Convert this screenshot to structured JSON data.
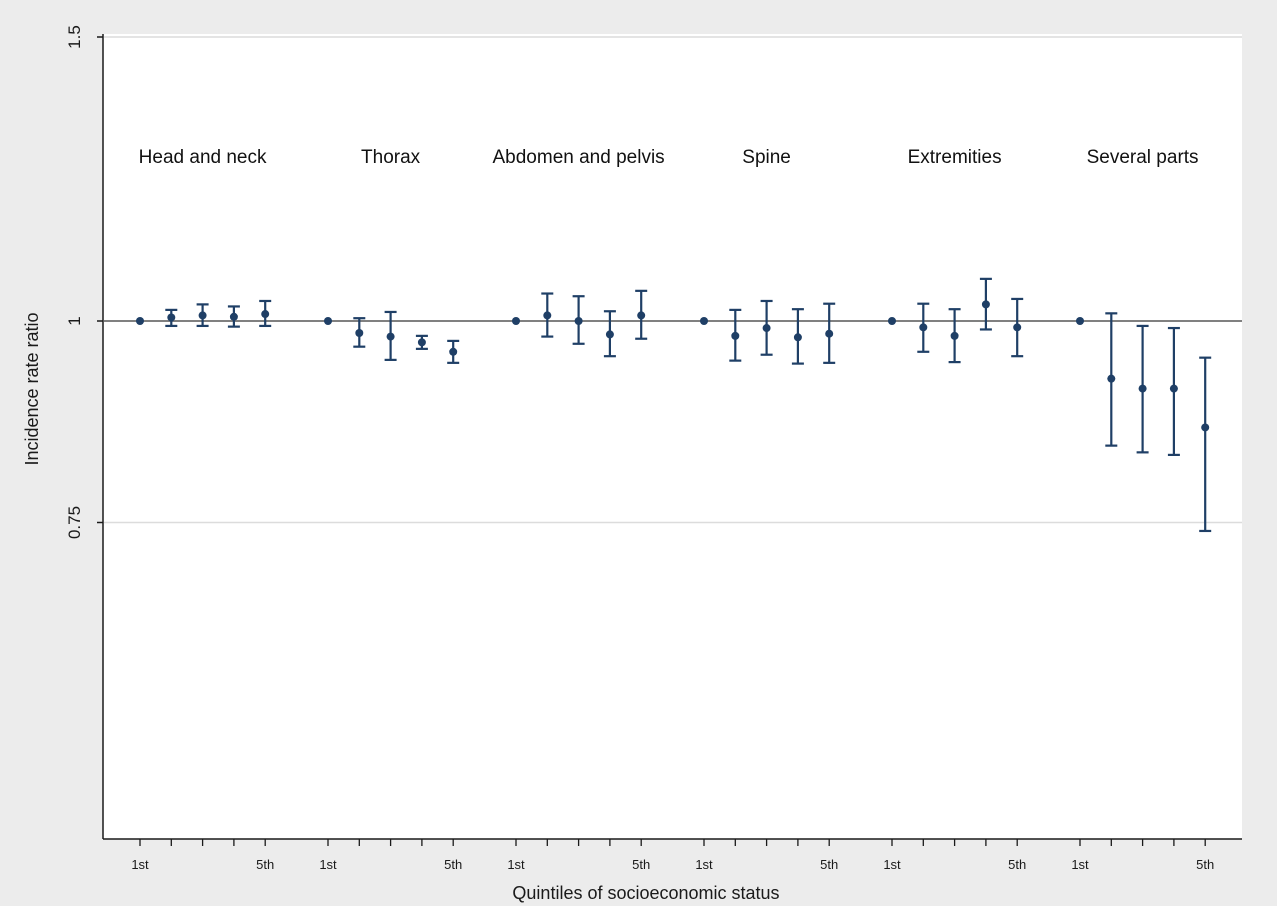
{
  "chart_data": {
    "type": "scatter",
    "subtype": "point-estimates-with-confidence-intervals",
    "xlabel": "Quintiles of socioeconomic status",
    "ylabel": "Incidence rate ratio",
    "ylim": [
      0.735,
      1.5
    ],
    "yscale": "log",
    "yticks": [
      0.75,
      1,
      1.5
    ],
    "ytick_labels": [
      "0.75",
      "1",
      "1.5"
    ],
    "reference_line": 1,
    "grid": true,
    "marker_color": "#1f3f66",
    "reference_line_color": "#808080",
    "background_color": "#ececec",
    "plot_background_color": "#ffffff",
    "groups": [
      {
        "label": "Head and neck",
        "tick_labels": [
          "1st",
          "5th"
        ],
        "points": [
          {
            "quintile": "1st",
            "irr": 1.0,
            "lower": null,
            "upper": null
          },
          {
            "quintile": "2nd",
            "irr": 1.005,
            "lower": 0.993,
            "upper": 1.016
          },
          {
            "quintile": "3rd",
            "irr": 1.008,
            "lower": 0.993,
            "upper": 1.024
          },
          {
            "quintile": "4th",
            "irr": 1.006,
            "lower": 0.992,
            "upper": 1.021
          },
          {
            "quintile": "5th",
            "irr": 1.01,
            "lower": 0.993,
            "upper": 1.029
          }
        ]
      },
      {
        "label": "Thorax",
        "tick_labels": [
          "1st",
          "5th"
        ],
        "points": [
          {
            "quintile": "1st",
            "irr": 1.0,
            "lower": null,
            "upper": null
          },
          {
            "quintile": "2nd",
            "irr": 0.983,
            "lower": 0.964,
            "upper": 1.004
          },
          {
            "quintile": "3rd",
            "irr": 0.978,
            "lower": 0.946,
            "upper": 1.013
          },
          {
            "quintile": "4th",
            "irr": 0.97,
            "lower": 0.961,
            "upper": 0.979
          },
          {
            "quintile": "5th",
            "irr": 0.957,
            "lower": 0.942,
            "upper": 0.972
          }
        ]
      },
      {
        "label": "Abdomen and pelvis",
        "tick_labels": [
          "1st",
          "5th"
        ],
        "points": [
          {
            "quintile": "1st",
            "irr": 1.0,
            "lower": null,
            "upper": null
          },
          {
            "quintile": "2nd",
            "irr": 1.008,
            "lower": 0.978,
            "upper": 1.04
          },
          {
            "quintile": "3rd",
            "irr": 1.0,
            "lower": 0.968,
            "upper": 1.036
          },
          {
            "quintile": "4th",
            "irr": 0.981,
            "lower": 0.951,
            "upper": 1.014
          },
          {
            "quintile": "5th",
            "irr": 1.008,
            "lower": 0.975,
            "upper": 1.044
          }
        ]
      },
      {
        "label": "Spine",
        "tick_labels": [
          "1st",
          "5th"
        ],
        "points": [
          {
            "quintile": "1st",
            "irr": 1.0,
            "lower": null,
            "upper": null
          },
          {
            "quintile": "2nd",
            "irr": 0.979,
            "lower": 0.945,
            "upper": 1.016
          },
          {
            "quintile": "3rd",
            "irr": 0.99,
            "lower": 0.953,
            "upper": 1.029
          },
          {
            "quintile": "4th",
            "irr": 0.977,
            "lower": 0.941,
            "upper": 1.017
          },
          {
            "quintile": "5th",
            "irr": 0.982,
            "lower": 0.942,
            "upper": 1.025
          }
        ]
      },
      {
        "label": "Extremities",
        "tick_labels": [
          "1st",
          "5th"
        ],
        "points": [
          {
            "quintile": "1st",
            "irr": 1.0,
            "lower": null,
            "upper": null
          },
          {
            "quintile": "2nd",
            "irr": 0.991,
            "lower": 0.957,
            "upper": 1.025
          },
          {
            "quintile": "3rd",
            "irr": 0.979,
            "lower": 0.943,
            "upper": 1.017
          },
          {
            "quintile": "4th",
            "irr": 1.024,
            "lower": 0.988,
            "upper": 1.062
          },
          {
            "quintile": "5th",
            "irr": 0.991,
            "lower": 0.951,
            "upper": 1.032
          }
        ]
      },
      {
        "label": "Several parts",
        "tick_labels": [
          "1st",
          "5th"
        ],
        "points": [
          {
            "quintile": "1st",
            "irr": 1.0,
            "lower": null,
            "upper": null
          },
          {
            "quintile": "2nd",
            "irr": 0.921,
            "lower": 0.837,
            "upper": 1.011
          },
          {
            "quintile": "3rd",
            "irr": 0.908,
            "lower": 0.829,
            "upper": 0.993
          },
          {
            "quintile": "4th",
            "irr": 0.908,
            "lower": 0.826,
            "upper": 0.99
          },
          {
            "quintile": "5th",
            "irr": 0.859,
            "lower": 0.741,
            "upper": 0.949
          }
        ]
      }
    ]
  }
}
